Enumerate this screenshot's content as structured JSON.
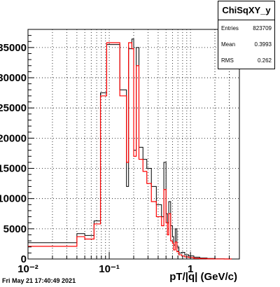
{
  "stats": {
    "title": "ChiSqXY_y",
    "rows": [
      {
        "label": "Entries",
        "value": "823709"
      },
      {
        "label": "Mean",
        "value": "0.3993"
      },
      {
        "label": "RMS",
        "value": "0.262"
      }
    ]
  },
  "timestamp": "Fri May 21 17:40:49 2021",
  "chart_data": {
    "type": "line",
    "subtype": "step-histogram",
    "title": "",
    "xlabel": "pT/|q| (GeV/c)",
    "ylabel": "",
    "xscale": "log",
    "xlim": [
      0.01,
      4.0
    ],
    "ylim": [
      0,
      38000
    ],
    "grid": true,
    "x_tick_labels": [
      {
        "value": 0.01,
        "label": "10⁻²"
      },
      {
        "value": 0.1,
        "label": "10⁻¹"
      },
      {
        "value": 1,
        "label": "1"
      }
    ],
    "y_tick_labels": [
      {
        "value": 5000,
        "label": "5000"
      },
      {
        "value": 10000,
        "label": "10000"
      },
      {
        "value": 15000,
        "label": "15000"
      },
      {
        "value": 20000,
        "label": "20000"
      },
      {
        "value": 25000,
        "label": "25000"
      },
      {
        "value": 30000,
        "label": "30000"
      },
      {
        "value": 35000,
        "label": "35000"
      }
    ],
    "series": [
      {
        "color": "#000000",
        "edges": [
          0.01,
          0.04,
          0.05,
          0.065,
          0.078,
          0.093,
          0.135,
          0.163,
          0.173,
          0.19,
          0.2,
          0.215,
          0.232,
          0.26,
          0.29,
          0.33,
          0.38,
          0.44,
          0.47,
          0.5,
          0.52,
          0.54,
          0.57,
          0.6,
          0.62,
          0.65,
          0.68,
          0.72,
          0.78,
          0.85,
          0.95,
          1.1,
          1.3,
          1.6,
          2.0,
          2.6,
          3.2
        ],
        "values": [
          2700,
          4200,
          3900,
          6300,
          27500,
          35500,
          28000,
          12000,
          34800,
          36400,
          18000,
          35000,
          18500,
          16500,
          15000,
          12000,
          9000,
          7000,
          16000,
          7500,
          6000,
          9500,
          5500,
          3700,
          2300,
          5000,
          2000,
          1000,
          1100,
          700,
          500,
          300,
          160,
          80,
          30,
          10
        ]
      },
      {
        "color": "#ff0000",
        "edges": [
          0.01,
          0.04,
          0.05,
          0.065,
          0.078,
          0.093,
          0.135,
          0.163,
          0.173,
          0.19,
          0.2,
          0.215,
          0.232,
          0.26,
          0.29,
          0.33,
          0.38,
          0.44,
          0.47,
          0.5,
          0.52,
          0.54,
          0.57,
          0.6,
          0.62,
          0.65,
          0.68,
          0.72,
          0.78,
          0.85,
          0.95,
          1.1,
          1.3,
          1.6,
          2.0,
          2.6,
          3.2
        ],
        "values": [
          2100,
          3700,
          3300,
          5800,
          27000,
          35800,
          27000,
          16000,
          35800,
          34800,
          17000,
          32000,
          16500,
          14500,
          12500,
          9500,
          7000,
          5500,
          11500,
          6000,
          4000,
          7500,
          3000,
          2600,
          1500,
          2800,
          1200,
          700,
          500,
          350,
          250,
          120,
          60,
          25,
          10,
          3
        ]
      }
    ]
  }
}
